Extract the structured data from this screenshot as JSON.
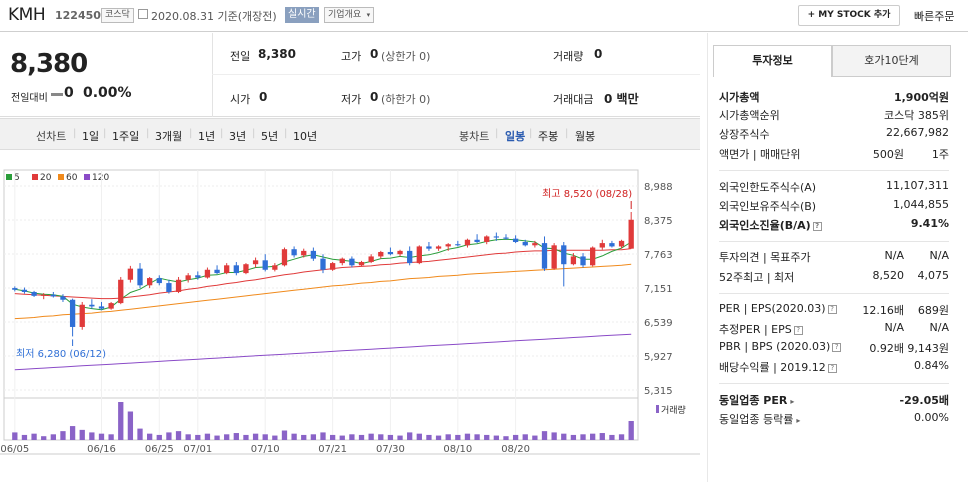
{
  "header": {
    "stock_name": "KMH",
    "stock_code": "122450",
    "market_badge": "코스닥",
    "date_text": "2020.08.31 기준(개장전)",
    "realtime_button": "실시간",
    "company_overview_button": "기업개요",
    "my_stock_button": "+ MY STOCK 추가",
    "quick_order_link": "빠른주문"
  },
  "price": {
    "current": "8,380",
    "change_label": "전일대비",
    "change_value": "0",
    "change_pct": "0.00%",
    "prev_close_label": "전일",
    "prev_close": "8,380",
    "high_label": "고가",
    "high": "0",
    "upper_limit": "(상한가 0)",
    "volume_label": "거래량",
    "volume": "0",
    "open_label": "시가",
    "open": "0",
    "low_label": "저가",
    "low": "0",
    "lower_limit": "(하한가 0)",
    "trade_value_label": "거래대금",
    "trade_value": "0 백만"
  },
  "period_tabs": {
    "line_chart": "선차트",
    "items": [
      "1일",
      "1주일",
      "3개월",
      "1년",
      "3년",
      "5년",
      "10년"
    ],
    "candle_chart": "봉차트",
    "candle_items": [
      "일봉",
      "주봉",
      "월봉"
    ],
    "active_candle": "일봉"
  },
  "legend": [
    {
      "label": "5",
      "color": "#2a9d3a"
    },
    {
      "label": "20",
      "color": "#e03a3a"
    },
    {
      "label": "60",
      "color": "#f08a1c"
    },
    {
      "label": "120",
      "color": "#8a4bc7"
    }
  ],
  "chart_data": {
    "type": "candlestick",
    "y_ticks": [
      "8,988",
      "8,375",
      "7,763",
      "7,151",
      "6,539",
      "5,927",
      "5,315"
    ],
    "ylim": [
      5315,
      8988
    ],
    "x_ticks": [
      "06/05",
      "06/16",
      "06/25",
      "07/01",
      "07/10",
      "07/21",
      "07/30",
      "08/10",
      "08/20"
    ],
    "high_annotation": "최고 8,520 (08/28)",
    "low_annotation": "최저 6,280 (06/12)",
    "volume_label": "거래량",
    "candles": [
      [
        7150,
        7180,
        7090,
        7120
      ],
      [
        7120,
        7160,
        7050,
        7080
      ],
      [
        7080,
        7100,
        6990,
        7010
      ],
      [
        7010,
        7060,
        6950,
        7030
      ],
      [
        7030,
        7080,
        6980,
        7000
      ],
      [
        7000,
        7040,
        6900,
        6940
      ],
      [
        6940,
        6960,
        6280,
        6450
      ],
      [
        6450,
        6900,
        6400,
        6850
      ],
      [
        6850,
        6950,
        6780,
        6820
      ],
      [
        6820,
        6900,
        6750,
        6780
      ],
      [
        6780,
        6900,
        6760,
        6880
      ],
      [
        6880,
        7350,
        6860,
        7300
      ],
      [
        7300,
        7550,
        7250,
        7500
      ],
      [
        7500,
        7600,
        7150,
        7200
      ],
      [
        7200,
        7350,
        7150,
        7330
      ],
      [
        7330,
        7380,
        7200,
        7240
      ],
      [
        7240,
        7300,
        7050,
        7080
      ],
      [
        7080,
        7350,
        7060,
        7300
      ],
      [
        7300,
        7420,
        7250,
        7380
      ],
      [
        7380,
        7450,
        7300,
        7340
      ],
      [
        7340,
        7520,
        7320,
        7480
      ],
      [
        7480,
        7560,
        7400,
        7420
      ],
      [
        7420,
        7600,
        7400,
        7560
      ],
      [
        7560,
        7620,
        7380,
        7420
      ],
      [
        7420,
        7600,
        7400,
        7580
      ],
      [
        7580,
        7700,
        7520,
        7650
      ],
      [
        7650,
        7760,
        7450,
        7480
      ],
      [
        7480,
        7600,
        7450,
        7560
      ],
      [
        7560,
        7880,
        7540,
        7850
      ],
      [
        7850,
        7900,
        7700,
        7740
      ],
      [
        7740,
        7860,
        7700,
        7820
      ],
      [
        7820,
        7880,
        7640,
        7680
      ],
      [
        7680,
        7760,
        7420,
        7480
      ],
      [
        7480,
        7620,
        7460,
        7600
      ],
      [
        7600,
        7700,
        7560,
        7680
      ],
      [
        7680,
        7720,
        7520,
        7560
      ],
      [
        7560,
        7640,
        7540,
        7620
      ],
      [
        7620,
        7760,
        7600,
        7720
      ],
      [
        7720,
        7820,
        7680,
        7800
      ],
      [
        7800,
        7880,
        7740,
        7760
      ],
      [
        7760,
        7840,
        7720,
        7820
      ],
      [
        7820,
        7900,
        7560,
        7600
      ],
      [
        7600,
        7920,
        7580,
        7900
      ],
      [
        7900,
        7980,
        7820,
        7860
      ],
      [
        7860,
        7920,
        7820,
        7900
      ],
      [
        7900,
        7960,
        7820,
        7940
      ],
      [
        7940,
        8000,
        7900,
        7920
      ],
      [
        7920,
        8040,
        7880,
        8020
      ],
      [
        8020,
        8120,
        7960,
        7980
      ],
      [
        7980,
        8100,
        7940,
        8080
      ],
      [
        8080,
        8150,
        8000,
        8060
      ],
      [
        8060,
        8120,
        8020,
        8040
      ],
      [
        8040,
        8100,
        7960,
        7980
      ],
      [
        7980,
        8020,
        7900,
        7920
      ],
      [
        7920,
        8000,
        7880,
        7960
      ],
      [
        7960,
        8080,
        7460,
        7500
      ],
      [
        7500,
        7960,
        7480,
        7920
      ],
      [
        7920,
        7980,
        7180,
        7580
      ],
      [
        7580,
        7780,
        7560,
        7720
      ],
      [
        7720,
        7780,
        7520,
        7560
      ],
      [
        7560,
        7900,
        7540,
        7880
      ],
      [
        7880,
        8020,
        7840,
        7960
      ],
      [
        7960,
        8000,
        7880,
        7900
      ],
      [
        7900,
        8020,
        7860,
        8000
      ],
      [
        7860,
        8520,
        7860,
        8380
      ]
    ],
    "ma5": [
      7130,
      7100,
      7060,
      7040,
      7030,
      7000,
      6860,
      6810,
      6780,
      6760,
      6810,
      6950,
      7070,
      7130,
      7230,
      7330,
      7290,
      7260,
      7300,
      7330,
      7380,
      7390,
      7430,
      7430,
      7470,
      7520,
      7530,
      7540,
      7620,
      7670,
      7720,
      7750,
      7710,
      7670,
      7650,
      7630,
      7590,
      7630,
      7680,
      7690,
      7720,
      7700,
      7730,
      7750,
      7790,
      7850,
      7880,
      7930,
      7950,
      7990,
      8020,
      8030,
      8020,
      8000,
      7980,
      7870,
      7860,
      7780,
      7740,
      7670,
      7670,
      7730,
      7810,
      7870,
      7980
    ],
    "ma20": [
      7050,
      7040,
      7030,
      7020,
      7010,
      7000,
      6990,
      6980,
      6970,
      6960,
      6960,
      6970,
      6990,
      7010,
      7030,
      7060,
      7080,
      7100,
      7130,
      7150,
      7180,
      7200,
      7230,
      7250,
      7280,
      7300,
      7330,
      7360,
      7390,
      7410,
      7440,
      7460,
      7480,
      7500,
      7520,
      7530,
      7540,
      7550,
      7570,
      7580,
      7600,
      7610,
      7620,
      7630,
      7650,
      7670,
      7690,
      7710,
      7730,
      7750,
      7770,
      7780,
      7800,
      7810,
      7820,
      7820,
      7830,
      7830,
      7830,
      7830,
      7830,
      7830,
      7840,
      7840,
      7860
    ],
    "ma60": [
      6600,
      6610,
      6620,
      6640,
      6650,
      6670,
      6680,
      6690,
      6700,
      6720,
      6730,
      6750,
      6770,
      6790,
      6810,
      6830,
      6850,
      6870,
      6890,
      6910,
      6930,
      6950,
      6970,
      6990,
      7010,
      7030,
      7050,
      7070,
      7090,
      7110,
      7130,
      7150,
      7170,
      7190,
      7200,
      7220,
      7240,
      7250,
      7270,
      7280,
      7300,
      7320,
      7330,
      7340,
      7360,
      7370,
      7380,
      7400,
      7410,
      7420,
      7430,
      7440,
      7450,
      7460,
      7470,
      7480,
      7490,
      7500,
      7510,
      7520,
      7530,
      7540,
      7550,
      7560,
      7580
    ],
    "ma120": [
      5680,
      5690,
      5700,
      5710,
      5720,
      5730,
      5740,
      5750,
      5760,
      5770,
      5780,
      5790,
      5800,
      5810,
      5820,
      5830,
      5840,
      5850,
      5860,
      5870,
      5880,
      5890,
      5900,
      5910,
      5920,
      5930,
      5940,
      5950,
      5960,
      5970,
      5980,
      5990,
      6000,
      6010,
      6020,
      6030,
      6040,
      6050,
      6060,
      6070,
      6080,
      6090,
      6100,
      6110,
      6120,
      6130,
      6140,
      6150,
      6160,
      6170,
      6180,
      6190,
      6200,
      6210,
      6220,
      6230,
      6240,
      6250,
      6260,
      6270,
      6280,
      6290,
      6300,
      6310,
      6320
    ],
    "volumes": [
      12,
      8,
      10,
      6,
      9,
      14,
      22,
      16,
      12,
      10,
      9,
      60,
      45,
      18,
      10,
      8,
      12,
      14,
      9,
      8,
      10,
      7,
      9,
      11,
      8,
      10,
      9,
      7,
      15,
      10,
      8,
      9,
      12,
      8,
      7,
      9,
      8,
      10,
      9,
      8,
      7,
      12,
      10,
      8,
      7,
      9,
      8,
      10,
      9,
      8,
      7,
      6,
      8,
      9,
      7,
      14,
      12,
      10,
      8,
      9,
      10,
      11,
      8,
      9,
      30
    ]
  },
  "right_panel": {
    "tab_invest": "투자정보",
    "tab_hoga": "호가10단계",
    "market_cap_label": "시가총액",
    "market_cap": "1,900억원",
    "market_cap_rank_label": "시가총액순위",
    "market_cap_rank": "코스닥 385위",
    "shares_label": "상장주식수",
    "shares": "22,667,982",
    "face_label": "액면가 | 매매단위",
    "face_value": "500원",
    "trade_unit": "1주",
    "foreign_limit_label": "외국인한도주식수(A)",
    "foreign_limit": "11,107,311",
    "foreign_hold_label": "외국인보유주식수(B)",
    "foreign_hold": "1,044,855",
    "foreign_ratio_label": "외국인소진율(B/A)",
    "foreign_ratio": "9.41%",
    "opinion_label": "투자의견 | 목표주가",
    "opinion": "N/A",
    "target_price": "N/A",
    "week52_label": "52주최고 | 최저",
    "week52_high": "8,520",
    "week52_low": "4,075",
    "per_label": "PER | EPS(2020.03)",
    "per": "12.16배",
    "eps": "689원",
    "est_per_label": "추정PER | EPS",
    "est_per": "N/A",
    "est_eps": "N/A",
    "pbr_label": "PBR | BPS (2020.03)",
    "pbr": "0.92배",
    "bps": "9,143원",
    "dividend_label": "배당수익률 | 2019.12",
    "dividend": "0.84%",
    "industry_per_label": "동일업종 PER",
    "industry_per": "-29.05배",
    "industry_change_label": "동일업종 등락률",
    "industry_change": "0.00%"
  }
}
